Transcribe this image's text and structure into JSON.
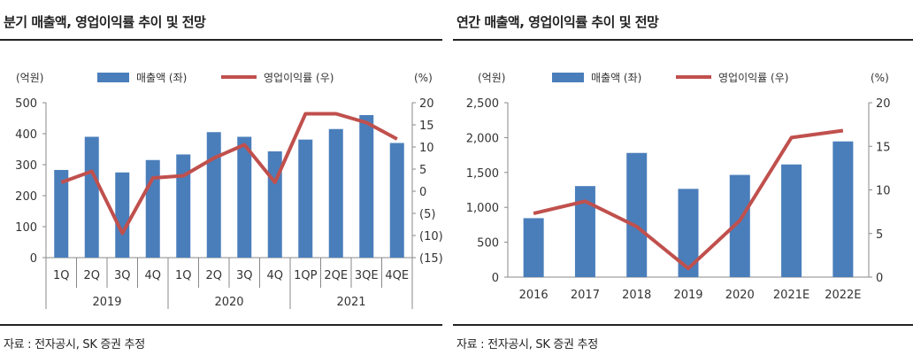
{
  "left_panel": {
    "title": "분기 매출액, 영업이익률 추이 및 전망",
    "source": "자료 : 전자공시, SK 증권 추정"
  },
  "right_panel": {
    "title": "연간 매출액, 영업이익률 추이 및 전망",
    "source": "자료 : 전자공시, SK 증권 추정"
  },
  "colors": {
    "bar": "#4a7ebb",
    "line": "#c0504d",
    "axis": "#888888"
  },
  "chart_data": [
    {
      "type": "bar+line",
      "left_unit": "(억원)",
      "right_unit": "(%)",
      "legend": {
        "bar": "매출액 (좌)",
        "line": "영업이익률 (우)",
        "position": "top"
      },
      "categories": [
        "1Q",
        "2Q",
        "3Q",
        "4Q",
        "1Q",
        "2Q",
        "3Q",
        "4Q",
        "1QP",
        "2QE",
        "3QE",
        "4QE"
      ],
      "groups": [
        {
          "label": "2019",
          "count": 4
        },
        {
          "label": "2020",
          "count": 4
        },
        {
          "label": "2021",
          "count": 4
        }
      ],
      "series": [
        {
          "name": "매출액 (좌)",
          "type": "bar",
          "axis": "left",
          "values": [
            283,
            390,
            275,
            315,
            333,
            405,
            390,
            343,
            381,
            415,
            460,
            370
          ]
        },
        {
          "name": "영업이익률 (우)",
          "type": "line",
          "axis": "right",
          "values": [
            2.0,
            4.5,
            -9.5,
            3.0,
            3.5,
            7.5,
            10.5,
            2.0,
            17.5,
            17.5,
            15.5,
            11.8
          ]
        }
      ],
      "left_ylim": [
        0,
        500
      ],
      "left_ticks": [
        0,
        100,
        200,
        300,
        400,
        500
      ],
      "left_tick_labels": [
        "0",
        "100",
        "200",
        "300",
        "400",
        "500"
      ],
      "right_ylim": [
        -15,
        20
      ],
      "right_ticks": [
        -15,
        -10,
        -5,
        0,
        5,
        10,
        15,
        20
      ],
      "right_tick_labels": [
        "(15)",
        "(10)",
        "(5)",
        "0",
        "5",
        "10",
        "15",
        "20"
      ]
    },
    {
      "type": "bar+line",
      "left_unit": "(억원)",
      "right_unit": "(%)",
      "legend": {
        "bar": "매출액 (좌)",
        "line": "영업이익률 (우)",
        "position": "top"
      },
      "categories": [
        "2016",
        "2017",
        "2018",
        "2019",
        "2020",
        "2021E",
        "2022E"
      ],
      "series": [
        {
          "name": "매출액 (좌)",
          "type": "bar",
          "axis": "left",
          "values": [
            845,
            1305,
            1780,
            1265,
            1465,
            1615,
            1945
          ]
        },
        {
          "name": "영업이익률 (우)",
          "type": "line",
          "axis": "right",
          "values": [
            7.3,
            8.7,
            5.8,
            1.0,
            6.5,
            16.0,
            16.8
          ]
        }
      ],
      "left_ylim": [
        0,
        2500
      ],
      "left_ticks": [
        0,
        500,
        1000,
        1500,
        2000,
        2500
      ],
      "left_tick_labels": [
        "0",
        "500",
        "1,000",
        "1,500",
        "2,000",
        "2,500"
      ],
      "right_ylim": [
        0,
        20
      ],
      "right_ticks": [
        0,
        5,
        10,
        15,
        20
      ],
      "right_tick_labels": [
        "0",
        "5",
        "10",
        "15",
        "20"
      ]
    }
  ]
}
